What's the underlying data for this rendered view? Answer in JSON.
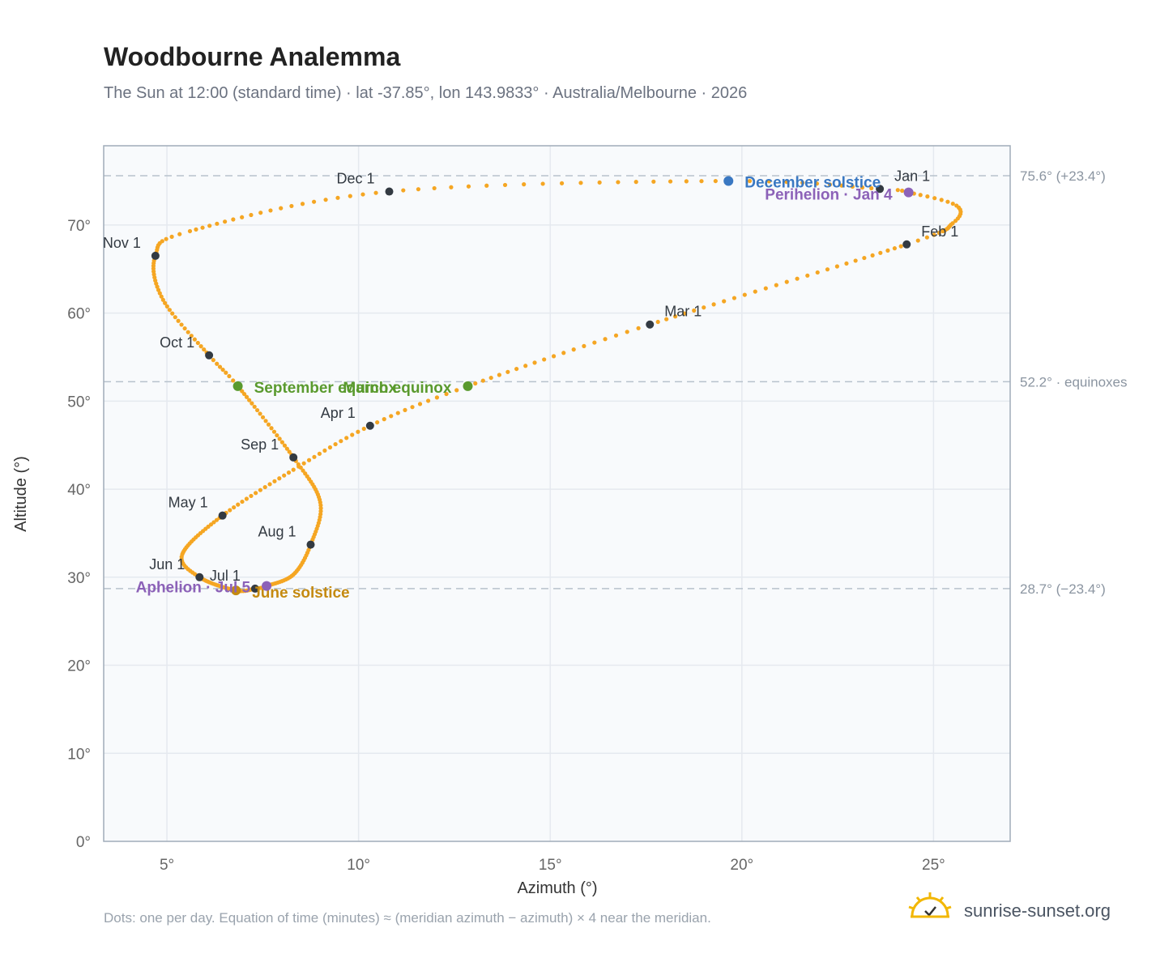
{
  "title": "Woodbourne Analemma",
  "subtitle": "The Sun at 12:00 (standard time) · lat -37.85°, lon 143.9833° · Australia/Melbourne · 2026",
  "footnote": "Dots: one per day. Equation of time (minutes) ≈ (meridian azimuth − azimuth) × 4 near the meridian.",
  "brand": {
    "name": "sunrise-sunset.org",
    "logo_icon": "sun-check-icon",
    "color": "#f2b705"
  },
  "chart_data": {
    "type": "scatter",
    "xlabel": "Azimuth (°)",
    "ylabel": "Altitude (°)",
    "xlim": [
      3.35,
      27.0
    ],
    "ylim": [
      0,
      79
    ],
    "xticks": [
      5,
      10,
      15,
      20,
      25
    ],
    "xtick_labels": [
      "5°",
      "10°",
      "15°",
      "20°",
      "25°"
    ],
    "yticks": [
      0,
      10,
      20,
      30,
      40,
      50,
      60,
      70
    ],
    "ytick_labels": [
      "0°",
      "10°",
      "20°",
      "30°",
      "40°",
      "50°",
      "60°",
      "70°"
    ],
    "grid": true,
    "path_color": "#f5a623",
    "path_keypoints": [
      {
        "doy": 1,
        "az": 23.6,
        "alt": 74.1
      },
      {
        "doy": 4,
        "az": 24.35,
        "alt": 73.7
      },
      {
        "doy": 12,
        "az": 25.6,
        "alt": 72.2
      },
      {
        "doy": 20,
        "az": 25.5,
        "alt": 70.2
      },
      {
        "doy": 32,
        "az": 24.3,
        "alt": 67.8
      },
      {
        "doy": 60,
        "az": 17.6,
        "alt": 58.7
      },
      {
        "doy": 79,
        "az": 12.85,
        "alt": 51.7
      },
      {
        "doy": 91,
        "az": 10.3,
        "alt": 47.2
      },
      {
        "doy": 105,
        "az": 8.3,
        "alt": 42.2
      },
      {
        "doy": 121,
        "az": 6.45,
        "alt": 37.0
      },
      {
        "doy": 140,
        "az": 5.4,
        "alt": 32.6
      },
      {
        "doy": 152,
        "az": 5.85,
        "alt": 30.0
      },
      {
        "doy": 172,
        "az": 6.8,
        "alt": 28.5
      },
      {
        "doy": 182,
        "az": 7.3,
        "alt": 28.7
      },
      {
        "doy": 186,
        "az": 7.6,
        "alt": 29.0
      },
      {
        "doy": 200,
        "az": 8.3,
        "alt": 30.3
      },
      {
        "doy": 213,
        "az": 8.75,
        "alt": 33.7
      },
      {
        "doy": 228,
        "az": 9.0,
        "alt": 38.5
      },
      {
        "doy": 244,
        "az": 8.3,
        "alt": 43.6
      },
      {
        "doy": 266,
        "az": 6.85,
        "alt": 51.7
      },
      {
        "doy": 274,
        "az": 6.1,
        "alt": 55.2
      },
      {
        "doy": 290,
        "az": 4.9,
        "alt": 61.5
      },
      {
        "doy": 305,
        "az": 4.7,
        "alt": 66.5
      },
      {
        "doy": 315,
        "az": 5.6,
        "alt": 69.3
      },
      {
        "doy": 335,
        "az": 10.8,
        "alt": 73.8
      },
      {
        "doy": 355,
        "az": 19.65,
        "alt": 75.0
      },
      {
        "doy": 366,
        "az": 23.6,
        "alt": 74.1
      }
    ],
    "month_markers": [
      {
        "label": "Jan 1",
        "az": 23.6,
        "alt": 74.1,
        "anchor": "start"
      },
      {
        "label": "Feb 1",
        "az": 24.3,
        "alt": 67.8,
        "anchor": "start"
      },
      {
        "label": "Mar 1",
        "az": 17.6,
        "alt": 58.7,
        "anchor": "start"
      },
      {
        "label": "Apr 1",
        "az": 10.3,
        "alt": 47.2,
        "anchor": "end"
      },
      {
        "label": "May 1",
        "az": 6.45,
        "alt": 37.0,
        "anchor": "end"
      },
      {
        "label": "Jun 1",
        "az": 5.85,
        "alt": 30.0,
        "anchor": "end"
      },
      {
        "label": "Jul 1",
        "az": 7.3,
        "alt": 28.7,
        "anchor": "end"
      },
      {
        "label": "Aug 1",
        "az": 8.75,
        "alt": 33.7,
        "anchor": "end"
      },
      {
        "label": "Sep 1",
        "az": 8.3,
        "alt": 43.6,
        "anchor": "end"
      },
      {
        "label": "Oct 1",
        "az": 6.1,
        "alt": 55.2,
        "anchor": "end"
      },
      {
        "label": "Nov 1",
        "az": 4.7,
        "alt": 66.5,
        "anchor": "end"
      },
      {
        "label": "Dec 1",
        "az": 10.8,
        "alt": 73.8,
        "anchor": "end"
      }
    ],
    "events": [
      {
        "label": "December solstice",
        "az": 19.65,
        "alt": 75.0,
        "color": "#3a78c2",
        "anchor": "start"
      },
      {
        "label": "Perihelion · Jan 4",
        "az": 24.35,
        "alt": 73.7,
        "color": "#8c62b8",
        "anchor": "end"
      },
      {
        "label": "March equinox",
        "az": 12.85,
        "alt": 51.7,
        "color": "#5a9a2e",
        "anchor": "end"
      },
      {
        "label": "September equinox",
        "az": 6.85,
        "alt": 51.7,
        "color": "#5a9a2e",
        "anchor": "start"
      },
      {
        "label": "June solstice",
        "az": 6.8,
        "alt": 28.5,
        "color": "#c58a10",
        "anchor": "start"
      },
      {
        "label": "Aphelion · Jul 5",
        "az": 7.6,
        "alt": 29.0,
        "color": "#8c62b8",
        "anchor": "end"
      }
    ],
    "reference_lines": [
      {
        "alt": 75.6,
        "label": "75.6° (+23.4°)"
      },
      {
        "alt": 52.2,
        "label": "52.2° · equinoxes"
      },
      {
        "alt": 28.7,
        "label": "28.7° (−23.4°)"
      }
    ]
  }
}
